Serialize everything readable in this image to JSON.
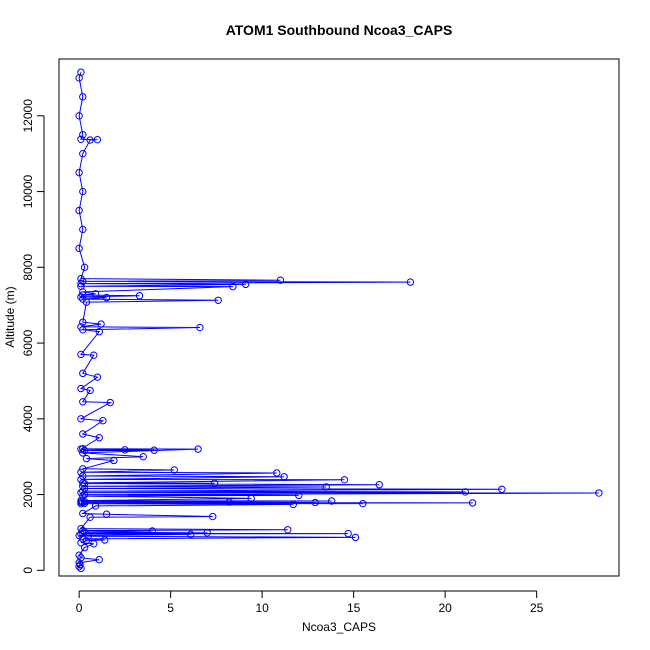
{
  "chart_data": {
    "type": "line",
    "title": "ATOM1 Southbound Ncoa3_CAPS",
    "xlabel": "Ncoa3_CAPS",
    "ylabel": "Altitude (m)",
    "xlim": [
      -1.1,
      29.5
    ],
    "ylim": [
      -150,
      13500
    ],
    "xticks": [
      0,
      5,
      10,
      15,
      20,
      25
    ],
    "yticks": [
      0,
      2000,
      4000,
      6000,
      8000,
      10000,
      12000
    ],
    "grid": false,
    "legend": "none",
    "line_color": "#0000ff",
    "marker": "open-circle",
    "series": [
      {
        "points": [
          [
            0.1,
            50
          ],
          [
            0.0,
            100
          ],
          [
            0.05,
            150
          ],
          [
            0.0,
            200
          ],
          [
            1.1,
            280
          ],
          [
            0.1,
            330
          ],
          [
            0.0,
            400
          ],
          [
            0.3,
            600
          ],
          [
            0.8,
            700
          ],
          [
            0.1,
            730
          ],
          [
            0.4,
            780
          ],
          [
            1.4,
            800
          ],
          [
            0.2,
            830
          ],
          [
            15.1,
            870
          ],
          [
            0.5,
            900
          ],
          [
            0.0,
            920
          ],
          [
            6.1,
            950
          ],
          [
            0.1,
            960
          ],
          [
            14.7,
            970
          ],
          [
            0.2,
            980
          ],
          [
            7.0,
            990
          ],
          [
            0.3,
            1010
          ],
          [
            4.0,
            1040
          ],
          [
            0.2,
            1050
          ],
          [
            11.4,
            1070
          ],
          [
            0.1,
            1100
          ],
          [
            0.6,
            1400
          ],
          [
            7.3,
            1420
          ],
          [
            1.5,
            1480
          ],
          [
            0.2,
            1500
          ],
          [
            0.9,
            1700
          ],
          [
            11.7,
            1740
          ],
          [
            0.1,
            1760
          ],
          [
            15.5,
            1760
          ],
          [
            0.3,
            1770
          ],
          [
            21.5,
            1780
          ],
          [
            0.2,
            1790
          ],
          [
            12.9,
            1790
          ],
          [
            0.1,
            1800
          ],
          [
            8.2,
            1800
          ],
          [
            0.3,
            1810
          ],
          [
            13.8,
            1830
          ],
          [
            0.1,
            1840
          ],
          [
            9.4,
            1900
          ],
          [
            0.2,
            1960
          ],
          [
            12.0,
            1980
          ],
          [
            0.3,
            2000
          ],
          [
            28.4,
            2040
          ],
          [
            0.1,
            2050
          ],
          [
            21.1,
            2070
          ],
          [
            0.2,
            2090
          ],
          [
            23.1,
            2140
          ],
          [
            0.3,
            2160
          ],
          [
            13.5,
            2200
          ],
          [
            0.2,
            2220
          ],
          [
            16.4,
            2260
          ],
          [
            0.3,
            2290
          ],
          [
            7.4,
            2300
          ],
          [
            0.2,
            2310
          ],
          [
            14.5,
            2390
          ],
          [
            0.1,
            2400
          ],
          [
            11.2,
            2470
          ],
          [
            0.2,
            2490
          ],
          [
            10.8,
            2570
          ],
          [
            0.1,
            2590
          ],
          [
            5.2,
            2650
          ],
          [
            0.2,
            2680
          ],
          [
            1.9,
            2900
          ],
          [
            0.4,
            2950
          ],
          [
            3.5,
            3000
          ],
          [
            0.2,
            3100
          ],
          [
            6.5,
            3200
          ],
          [
            0.2,
            3210
          ],
          [
            4.1,
            3170
          ],
          [
            0.3,
            3160
          ],
          [
            2.5,
            3180
          ],
          [
            0.1,
            3200
          ],
          [
            1.1,
            3500
          ],
          [
            0.2,
            3600
          ],
          [
            1.3,
            3950
          ],
          [
            0.1,
            4000
          ],
          [
            1.7,
            4430
          ],
          [
            0.2,
            4450
          ],
          [
            0.6,
            4750
          ],
          [
            0.1,
            4800
          ],
          [
            1.0,
            5100
          ],
          [
            0.2,
            5200
          ],
          [
            0.8,
            5680
          ],
          [
            0.1,
            5700
          ],
          [
            1.1,
            6300
          ],
          [
            0.2,
            6350
          ],
          [
            6.6,
            6410
          ],
          [
            0.1,
            6430
          ],
          [
            1.2,
            6500
          ],
          [
            0.2,
            6550
          ],
          [
            0.4,
            7080
          ],
          [
            7.6,
            7130
          ],
          [
            0.2,
            7160
          ],
          [
            1.5,
            7200
          ],
          [
            0.1,
            7220
          ],
          [
            3.3,
            7250
          ],
          [
            0.2,
            7270
          ],
          [
            0.9,
            7300
          ],
          [
            0.2,
            7350
          ],
          [
            8.4,
            7490
          ],
          [
            0.1,
            7500
          ],
          [
            9.1,
            7550
          ],
          [
            0.1,
            7570
          ],
          [
            18.1,
            7610
          ],
          [
            0.2,
            7630
          ],
          [
            11.0,
            7660
          ],
          [
            0.1,
            7700
          ],
          [
            0.3,
            8000
          ],
          [
            0.0,
            8500
          ],
          [
            0.2,
            9000
          ],
          [
            0.0,
            9500
          ],
          [
            0.2,
            10000
          ],
          [
            0.0,
            10500
          ],
          [
            0.2,
            11000
          ],
          [
            0.6,
            11360
          ],
          [
            1.0,
            11370
          ],
          [
            0.1,
            11380
          ],
          [
            0.2,
            11500
          ],
          [
            0.0,
            12000
          ],
          [
            0.2,
            12500
          ],
          [
            0.0,
            13000
          ],
          [
            0.1,
            13150
          ]
        ]
      }
    ]
  }
}
